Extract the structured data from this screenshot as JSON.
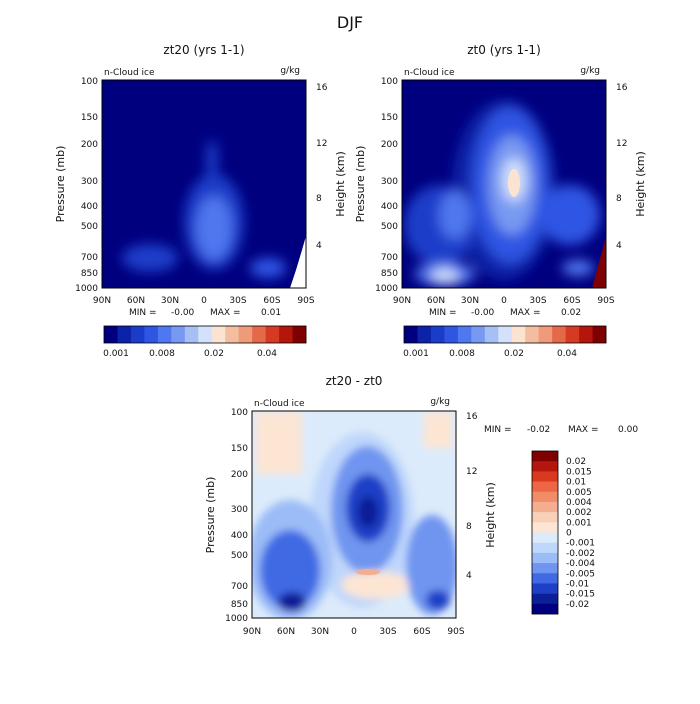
{
  "figure_title": "DJF",
  "colors": {
    "ramp_abs": [
      "#00007f",
      "#0c22a8",
      "#1b3cc9",
      "#2f55e3",
      "#4f77ef",
      "#7899f2",
      "#a6bff4",
      "#d3e1fa",
      "#fbe3d1",
      "#f4bd9f",
      "#ef9a78",
      "#e4684a",
      "#d53a22",
      "#b5150a",
      "#7f0000"
    ],
    "diff_levels": [
      "#7f0000",
      "#b3170d",
      "#d8391f",
      "#ee6646",
      "#f18c69",
      "#f4ad8e",
      "#f8cfb7",
      "#fde5d3",
      "#dcebfb",
      "#bfd7fb",
      "#9bbcf7",
      "#6f95f0",
      "#3f6ae4",
      "#1f40c6",
      "#0b1f98",
      "#00007f"
    ]
  },
  "panels": [
    {
      "id": "a",
      "title": "zt20 (yrs 1-1)",
      "var_label": "n-Cloud ice",
      "units": "g/kg",
      "min_label": "MIN =",
      "min_value": "-0.00",
      "max_label": "MAX =",
      "max_value": "0.01",
      "colorbar_ticks": [
        "0.001",
        "0.008",
        "0.02",
        "0.04"
      ]
    },
    {
      "id": "b",
      "title": "zt0 (yrs 1-1)",
      "var_label": "n-Cloud ice",
      "units": "g/kg",
      "min_label": "MIN =",
      "min_value": "-0.00",
      "max_label": "MAX =",
      "max_value": "0.02",
      "colorbar_ticks": [
        "0.001",
        "0.008",
        "0.02",
        "0.04"
      ]
    },
    {
      "id": "c",
      "title": "zt20 - zt0",
      "var_label": "n-Cloud ice",
      "units": "g/kg",
      "min_label": "MIN =",
      "min_value": "-0.02",
      "max_label": "MAX =",
      "max_value": "0.00",
      "colorbar_ticks": [
        "0.02",
        "0.015",
        "0.01",
        "0.005",
        "0.004",
        "0.002",
        "0.001",
        "0",
        "-0.001",
        "-0.002",
        "-0.004",
        "-0.005",
        "-0.01",
        "-0.015",
        "-0.02"
      ]
    }
  ],
  "axes": {
    "ylabel_left": "Pressure (mb)",
    "ylabel_right": "Height (km)",
    "x_ticks": [
      "90N",
      "60N",
      "30N",
      "0",
      "30S",
      "60S",
      "90S"
    ],
    "y_ticks": [
      "100",
      "150",
      "200",
      "300",
      "400",
      "500",
      "700",
      "850",
      "1000"
    ],
    "z_ticks": [
      "16",
      "12",
      "8",
      "4"
    ]
  },
  "chart_data": [
    {
      "type": "heatmap",
      "title": "zt20 (yrs 1-1)",
      "x": [
        90,
        60,
        30,
        0,
        -30,
        -60,
        -90
      ],
      "y_pressure": [
        100,
        150,
        200,
        300,
        400,
        500,
        700,
        850,
        1000
      ],
      "z_height_km": [
        16,
        12,
        8,
        4
      ],
      "field": "n-Cloud ice",
      "units": "g/kg",
      "min": -0.0,
      "max": 0.01,
      "features": [
        {
          "lat": 0,
          "pressure": 450,
          "value": 0.008
        },
        {
          "lat": -5,
          "pressure": 500,
          "value": 0.01
        },
        {
          "lat": 45,
          "pressure": 750,
          "value": 0.004
        },
        {
          "lat": -55,
          "pressure": 850,
          "value": 0.004
        }
      ]
    },
    {
      "type": "heatmap",
      "title": "zt0 (yrs 1-1)",
      "x": [
        90,
        60,
        30,
        0,
        -30,
        -60,
        -90
      ],
      "y_pressure": [
        100,
        150,
        200,
        300,
        400,
        500,
        700,
        850,
        1000
      ],
      "z_height_km": [
        16,
        12,
        8,
        4
      ],
      "field": "n-Cloud ice",
      "units": "g/kg",
      "min": -0.0,
      "max": 0.02,
      "features": [
        {
          "lat": -5,
          "pressure": 300,
          "value": 0.02
        },
        {
          "lat": 50,
          "pressure": 900,
          "value": 0.02
        },
        {
          "lat": 35,
          "pressure": 400,
          "value": 0.008
        },
        {
          "lat": -50,
          "pressure": 450,
          "value": 0.004
        },
        {
          "lat": -70,
          "pressure": 850,
          "value": 0.004
        }
      ]
    },
    {
      "type": "heatmap",
      "title": "zt20 - zt0",
      "x": [
        90,
        60,
        30,
        0,
        -30,
        -60,
        -90
      ],
      "y_pressure": [
        100,
        150,
        200,
        300,
        400,
        500,
        700,
        850,
        1000
      ],
      "z_height_km": [
        16,
        12,
        8,
        4
      ],
      "field": "n-Cloud ice",
      "units": "g/kg",
      "min": -0.02,
      "max": 0.0,
      "contour_levels": [
        0.02,
        0.015,
        0.01,
        0.005,
        0.004,
        0.002,
        0.001,
        0,
        -0.001,
        -0.002,
        -0.004,
        -0.005,
        -0.01,
        -0.015,
        -0.02
      ],
      "features": [
        {
          "lat": -5,
          "pressure": 300,
          "value": -0.015
        },
        {
          "lat": 55,
          "pressure": 900,
          "value": -0.015
        },
        {
          "lat": 45,
          "pressure": 600,
          "value": -0.005
        },
        {
          "lat": -60,
          "pressure": 700,
          "value": -0.005
        },
        {
          "lat": -10,
          "pressure": 650,
          "value": 0.002
        }
      ]
    }
  ]
}
